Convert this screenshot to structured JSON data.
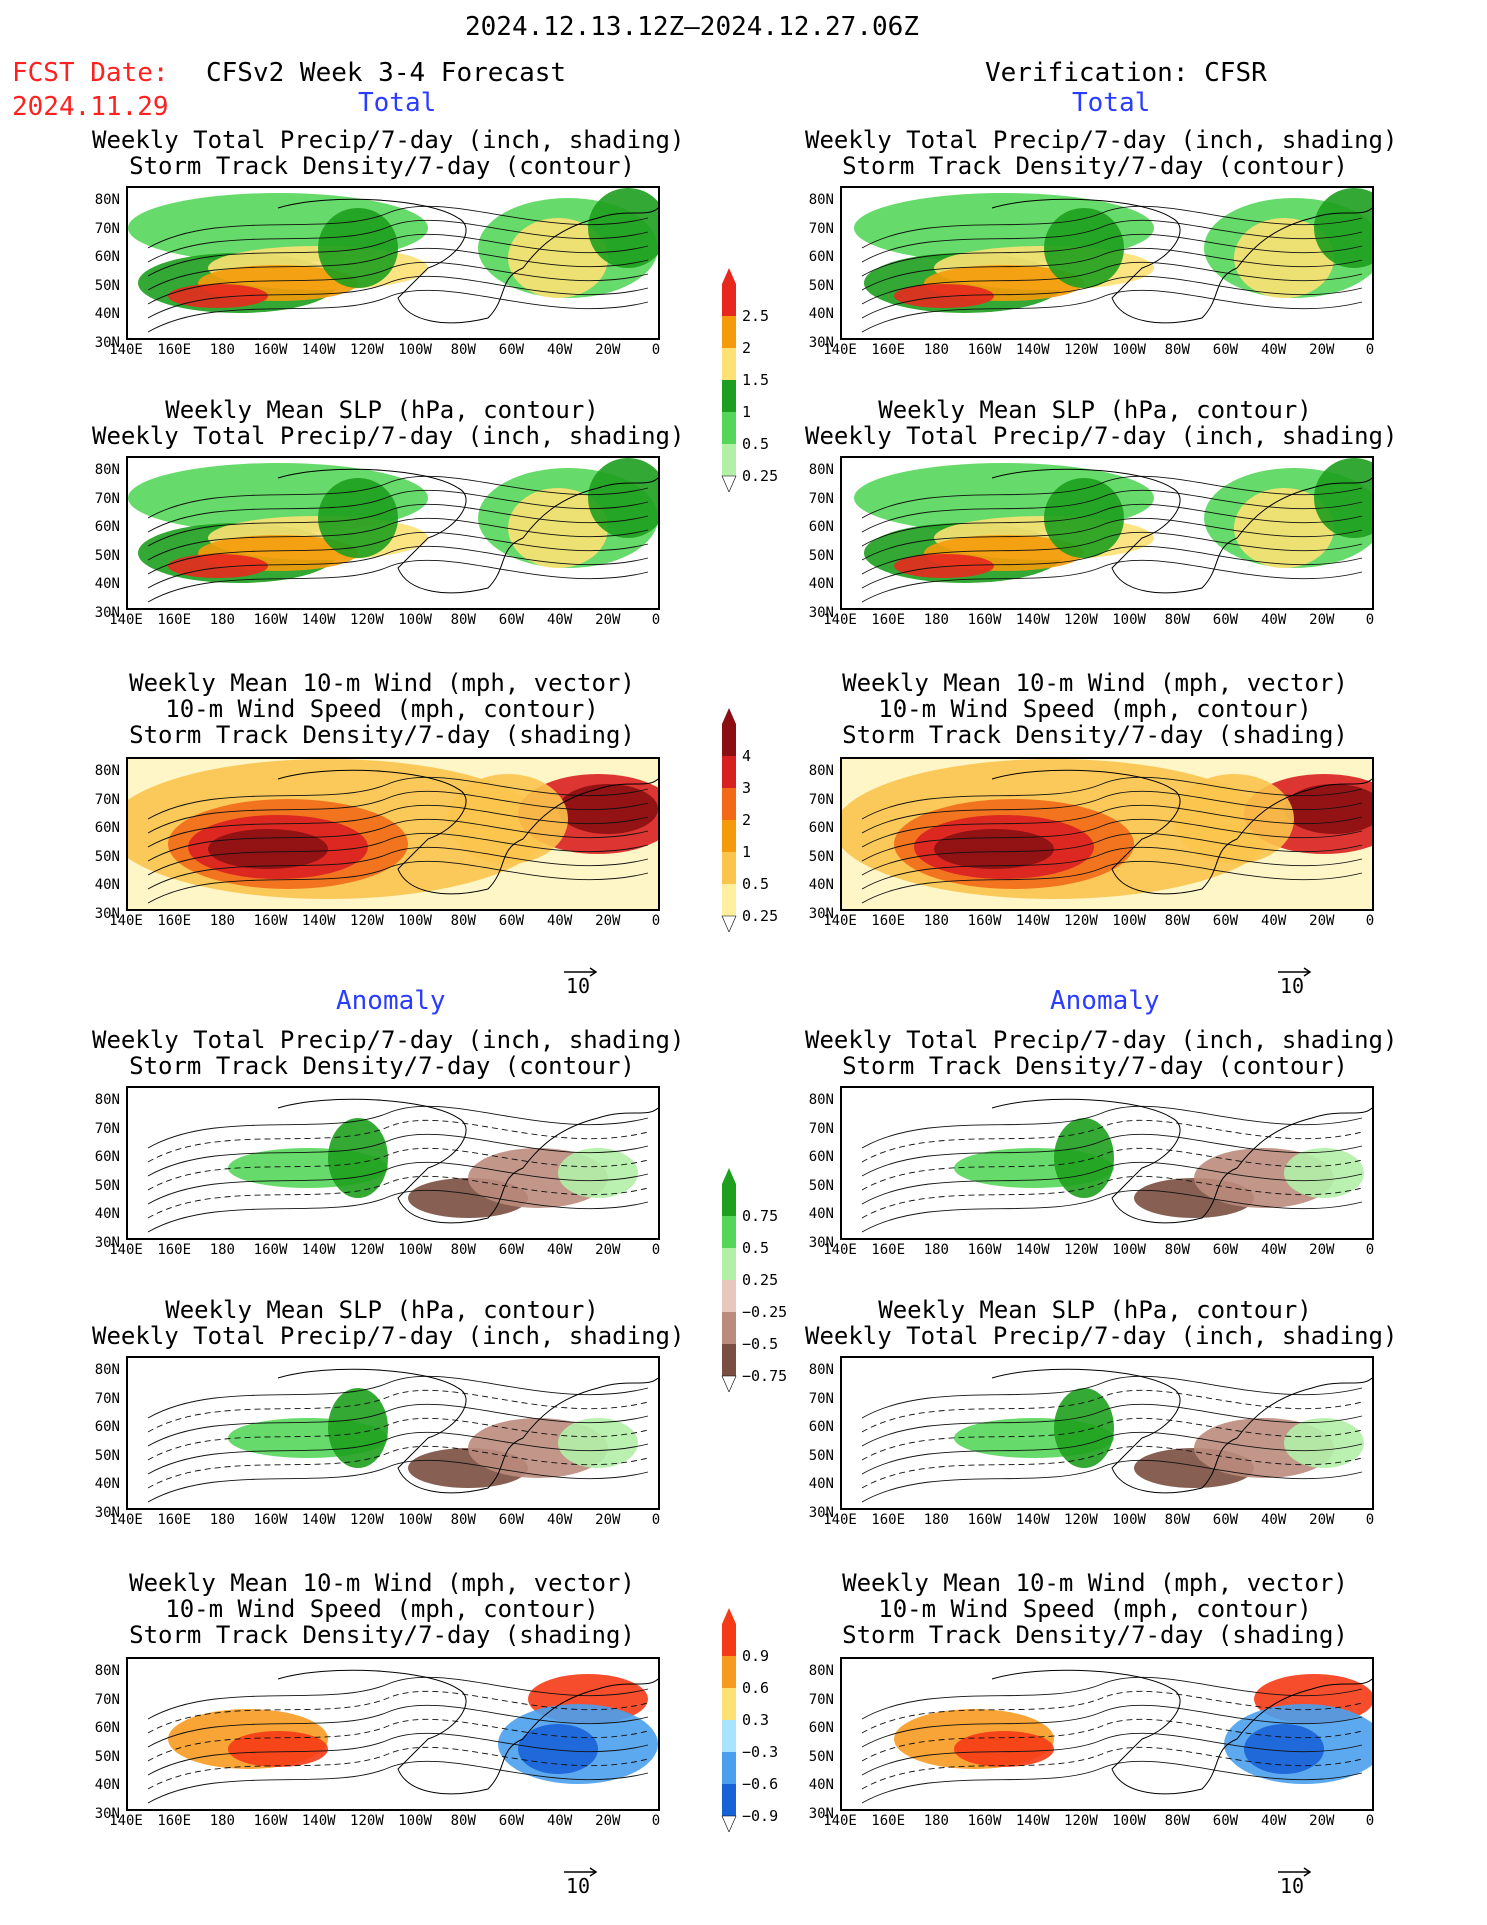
{
  "header": {
    "date_range": "2024.12.13.12Z–2024.12.27.06Z",
    "fcst_label": "FCST Date:",
    "fcst_date": "2024.11.29",
    "left_model": "CFSv2 Week 3-4 Forecast",
    "right_model": "Verification: CFSR",
    "section_total": "Total",
    "section_anomaly": "Anomaly"
  },
  "titles": {
    "precip_storm": [
      "Weekly Total Precip/7-day (inch, shading)",
      "Storm Track Density/7-day (contour)"
    ],
    "slp_precip": [
      "Weekly Mean SLP (hPa, contour)",
      "Weekly Total Precip/7-day (inch, shading)"
    ],
    "wind_storm": [
      "Weekly Mean 10-m Wind (mph, vector)",
      "10-m Wind Speed (mph, contour)",
      "Storm Track Density/7-day (shading)"
    ]
  },
  "axes": {
    "y_ticks": [
      "80N",
      "70N",
      "60N",
      "50N",
      "40N",
      "30N"
    ],
    "x_ticks": [
      "140E",
      "160E",
      "180",
      "160W",
      "140W",
      "120W",
      "100W",
      "80W",
      "60W",
      "40W",
      "20W",
      "0"
    ]
  },
  "vector_ref": "10",
  "colorbars": {
    "precip_total": {
      "labels": [
        "2.5",
        "2",
        "1.5",
        "1",
        "0.5",
        "0.25"
      ],
      "colors": [
        "#e8281e",
        "#f59a0a",
        "#fde174",
        "#1e9e1e",
        "#55d65a",
        "#b2f0a8"
      ]
    },
    "storm_total": {
      "labels": [
        "4",
        "3",
        "2",
        "1",
        "0.5",
        "0.25"
      ],
      "colors": [
        "#8b0f12",
        "#d92020",
        "#f26a18",
        "#f59a0a",
        "#fbc44c",
        "#fff0a0"
      ]
    },
    "precip_anom": {
      "labels": [
        "0.75",
        "0.5",
        "0.25",
        "−0.25",
        "−0.5",
        "−0.75"
      ],
      "colors": [
        "#1ea01e",
        "#55d65a",
        "#b2f0a8",
        "#e8c8bc",
        "#bb8c7c",
        "#7a4e40"
      ]
    },
    "storm_anom": {
      "labels": [
        "0.9",
        "0.6",
        "0.3",
        "−0.3",
        "−0.6",
        "−0.9"
      ],
      "colors": [
        "#f53b16",
        "#f79a20",
        "#fde174",
        "#a8e4ff",
        "#4aa0ee",
        "#1862d8"
      ]
    }
  }
}
